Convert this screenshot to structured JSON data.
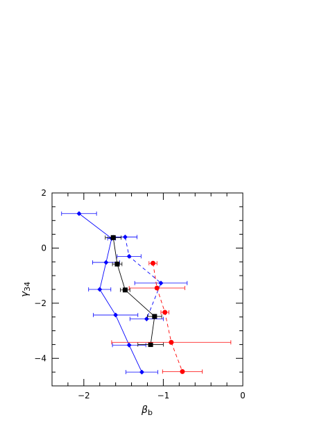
{
  "chart_data": {
    "type": "scatter",
    "xlabel": {
      "main": "β",
      "sub": "b"
    },
    "ylabel": {
      "main": "γ",
      "sub": "34"
    },
    "xlim": [
      -2.4,
      0
    ],
    "ylim": [
      -5,
      2
    ],
    "xticks": [
      -2,
      -1,
      0
    ],
    "xtick_labels": [
      "−2",
      "−1",
      "0"
    ],
    "yticks": [
      -4,
      -2,
      0,
      2
    ],
    "ytick_labels": [
      "−4",
      "−2",
      "0",
      "2"
    ],
    "grid": false,
    "series": [
      {
        "color": "#0000ff",
        "marker": "diamond",
        "line": "solid",
        "points": [
          {
            "x": -2.06,
            "y": 1.25,
            "xerr_lo": 0.22,
            "xerr_hi": 0.22
          },
          {
            "x": -1.65,
            "y": 0.35,
            "xerr_lo": 0.05,
            "xerr_hi": 0.05
          },
          {
            "x": -1.72,
            "y": -0.52,
            "xerr_lo": 0.17,
            "xerr_hi": 0.17
          },
          {
            "x": -1.8,
            "y": -1.5,
            "xerr_lo": 0.14,
            "xerr_hi": 0.14
          },
          {
            "x": -1.6,
            "y": -2.43,
            "xerr_lo": 0.28,
            "xerr_hi": 0.28
          },
          {
            "x": -1.43,
            "y": -3.52,
            "xerr_lo": 0.21,
            "xerr_hi": 0.21
          },
          {
            "x": -1.27,
            "y": -4.5,
            "xerr_lo": 0.2,
            "xerr_hi": 0.2
          }
        ]
      },
      {
        "color": "#0000ff",
        "marker": "diamond",
        "line": "dashed",
        "points": [
          {
            "x": -1.48,
            "y": 0.4,
            "xerr_lo": 0.15,
            "xerr_hi": 0.15
          },
          {
            "x": -1.43,
            "y": -0.3,
            "xerr_lo": 0.15,
            "xerr_hi": 0.15
          },
          {
            "x": -1.03,
            "y": -1.27,
            "xerr_lo": 0.33,
            "xerr_hi": 0.33
          },
          {
            "x": -1.21,
            "y": -2.57,
            "xerr_lo": 0.21,
            "xerr_hi": 0.21
          }
        ]
      },
      {
        "color": "#000000",
        "marker": "square",
        "line": "solid",
        "points": [
          {
            "x": -1.63,
            "y": 0.38,
            "xerr_lo": 0.1,
            "xerr_hi": 0.1
          },
          {
            "x": -1.58,
            "y": -0.58,
            "xerr_lo": 0.06,
            "xerr_hi": 0.06
          },
          {
            "x": -1.48,
            "y": -1.52,
            "xerr_lo": 0.06,
            "xerr_hi": 0.06
          },
          {
            "x": -1.11,
            "y": -2.48,
            "xerr_lo": 0.09,
            "xerr_hi": 0.09
          },
          {
            "x": -1.16,
            "y": -3.5,
            "xerr_lo": 0.16,
            "xerr_hi": 0.16
          }
        ]
      },
      {
        "color": "#ff0000",
        "marker": "circle",
        "line": "dashed",
        "points": [
          {
            "x": -1.13,
            "y": -0.55,
            "xerr_lo": 0.05,
            "xerr_hi": 0.05
          },
          {
            "x": -1.08,
            "y": -1.45,
            "xerr_lo": 0.35,
            "xerr_hi": 0.35
          },
          {
            "x": -0.98,
            "y": -2.33,
            "xerr_lo": 0.05,
            "xerr_hi": 0.05
          },
          {
            "x": -0.9,
            "y": -3.42,
            "xerr_lo": 0.75,
            "xerr_hi": 0.75
          },
          {
            "x": -0.76,
            "y": -4.48,
            "xerr_lo": 0.25,
            "xerr_hi": 0.25
          }
        ]
      }
    ]
  }
}
